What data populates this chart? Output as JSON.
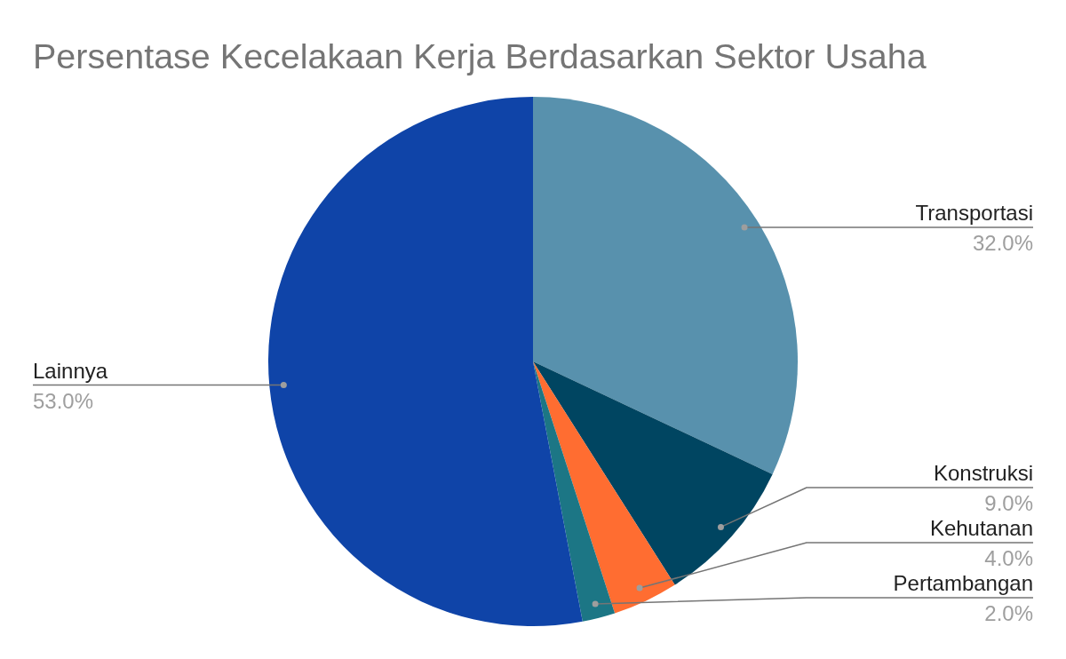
{
  "chart_data": {
    "type": "pie",
    "title": "Persentase Kecelakaan Kerja Berdasarkan Sektor Usaha",
    "categories": [
      "Transportasi",
      "Konstruksi",
      "Kehutanan",
      "Pertambangan",
      "Lainnya"
    ],
    "values": [
      32,
      9,
      4,
      2,
      53
    ],
    "colors": [
      "#5891ad",
      "#004561",
      "#ff6d31",
      "#1c7685",
      "#0f44a8"
    ],
    "value_labels": [
      "32.0%",
      "9.0%",
      "4.0%",
      "2.0%",
      "53.0%"
    ]
  }
}
